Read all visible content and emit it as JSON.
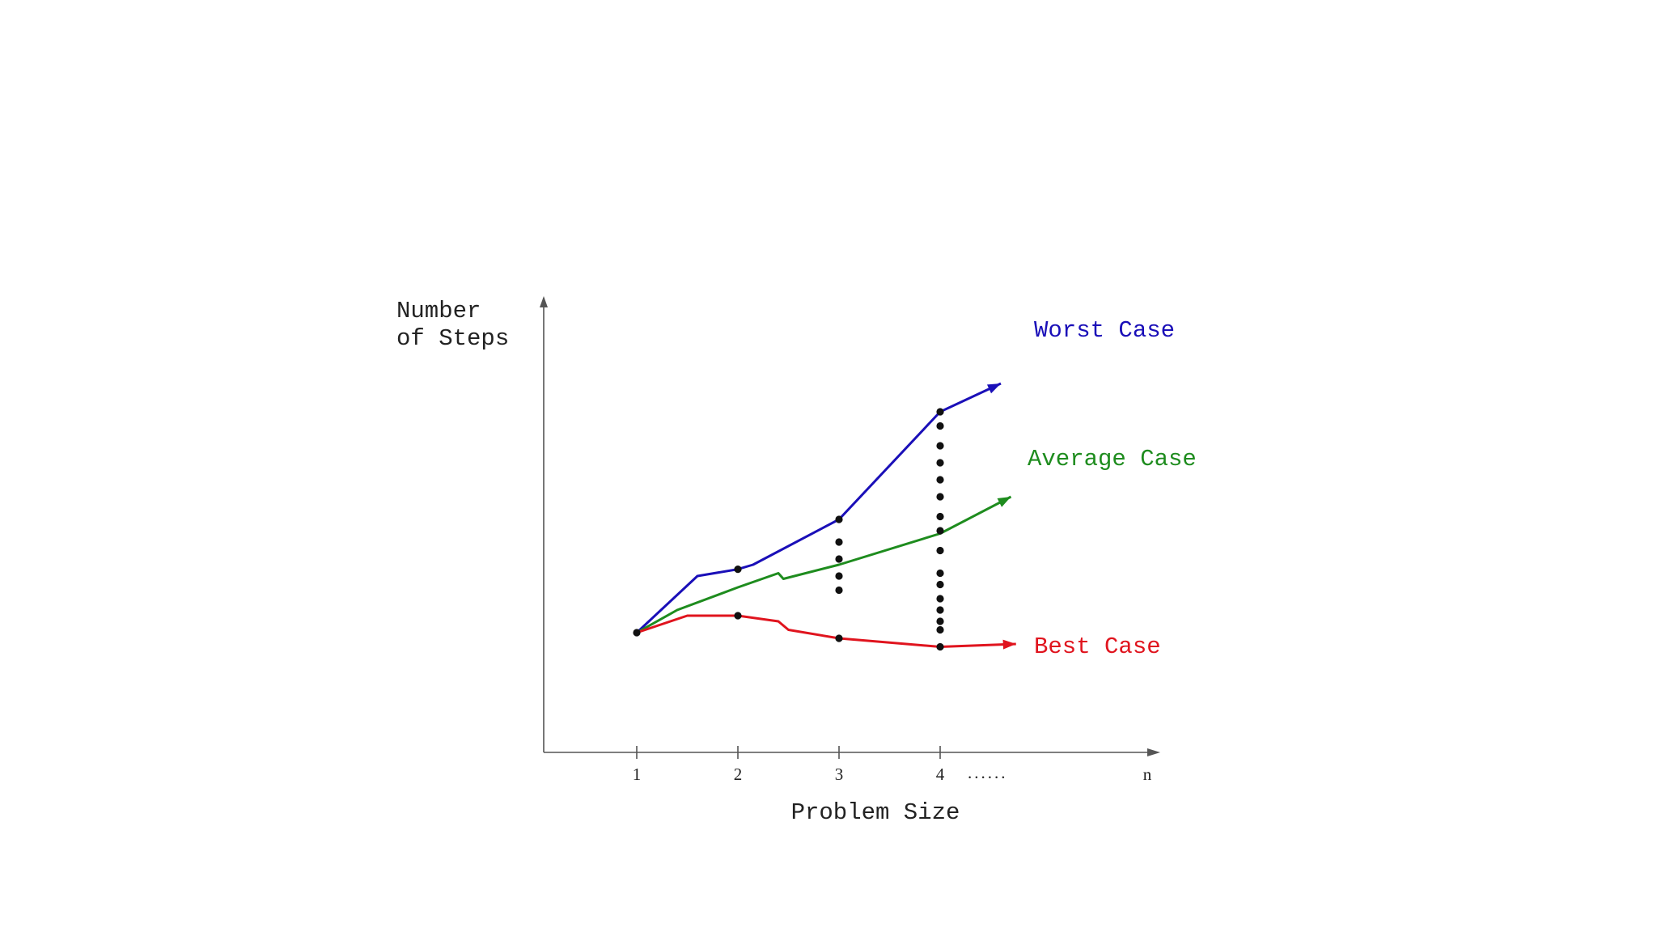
{
  "y_axis_label": [
    "Number",
    "of Steps"
  ],
  "x_axis_label": "Problem Size",
  "x_ticks": [
    "1",
    "2",
    "3",
    "4",
    "n"
  ],
  "x_ellipsis": "......",
  "colors": {
    "worst": "#1a0fb8",
    "average": "#1e8c1e",
    "best": "#e0141e",
    "axis": "#555555",
    "dot": "#111111"
  },
  "curves": {
    "worst": {
      "label": "Worst Case",
      "points": [
        [
          1,
          0
        ],
        [
          1.6,
          1.0
        ],
        [
          2,
          1.12
        ],
        [
          2.15,
          1.2
        ],
        [
          3,
          2.0
        ],
        [
          4,
          3.9
        ],
        [
          4.6,
          4.4
        ]
      ]
    },
    "average": {
      "label": "Average Case",
      "points": [
        [
          1,
          0
        ],
        [
          1.4,
          0.4
        ],
        [
          2,
          0.8
        ],
        [
          2.4,
          1.05
        ],
        [
          2.45,
          0.95
        ],
        [
          3,
          1.2
        ],
        [
          4,
          1.75
        ],
        [
          4.7,
          2.4
        ]
      ]
    },
    "best": {
      "label": "Best Case",
      "points": [
        [
          1,
          0
        ],
        [
          1.5,
          0.3
        ],
        [
          2,
          0.3
        ],
        [
          2.4,
          0.2
        ],
        [
          2.5,
          0.05
        ],
        [
          3,
          -0.1
        ],
        [
          4,
          -0.25
        ],
        [
          4.75,
          -0.2
        ]
      ]
    }
  },
  "dot_columns": {
    "1": [
      0
    ],
    "2": [
      1.12,
      0.3
    ],
    "3": [
      2.0,
      1.6,
      1.3,
      1.0,
      0.75,
      -0.1
    ],
    "4": [
      3.9,
      3.65,
      3.3,
      3.0,
      2.7,
      2.4,
      2.05,
      1.8,
      1.45,
      1.05,
      0.85,
      0.6,
      0.4,
      0.2,
      0.05,
      -0.25
    ]
  }
}
